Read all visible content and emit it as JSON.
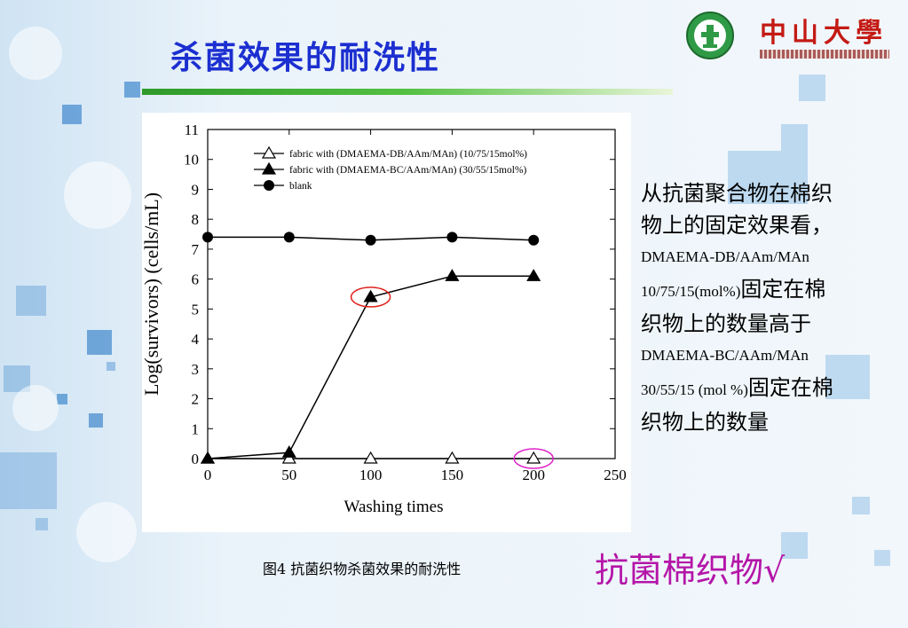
{
  "slide": {
    "title": "杀菌效果的耐洗性",
    "logo_text": "中山大學",
    "side_text": {
      "line1": "从抗菌聚合物在棉织",
      "line2": "物上的固定效果看，",
      "line3": "DMAEMA-DB/AAm/MAn",
      "line4a": "10/75/15(mol%)",
      "line4b": "固定在棉",
      "line5": "织物上的数量高于",
      "line6": "DMAEMA-BC/AAm/MAn",
      "line7a": "30/55/15 (mol %)",
      "line7b": "固定在棉",
      "line8": "织物上的数量"
    },
    "caption": "图4  抗菌织物杀菌效果的耐洗性",
    "conclusion": "抗菌棉织物√",
    "colors": {
      "title": "#1c2fd0",
      "conclusion": "#b415a8",
      "highlight_red": "#e0201c",
      "highlight_magenta": "#e020c8"
    }
  },
  "chart_data": {
    "type": "line",
    "xlabel": "Washing times",
    "ylabel": "Log(survivors) (cells/mL)",
    "xlim": [
      0,
      250
    ],
    "ylim": [
      0,
      11
    ],
    "xticks": [
      0,
      50,
      100,
      150,
      200,
      250
    ],
    "yticks": [
      0,
      1,
      2,
      3,
      4,
      5,
      6,
      7,
      8,
      9,
      10,
      11
    ],
    "legend_position": "top-left",
    "series": [
      {
        "name": "fabric with (DMAEMA-DB/AAm/MAn) (10/75/15mol%)",
        "marker": "open-triangle",
        "x": [
          0,
          50,
          100,
          150,
          200
        ],
        "y": [
          0,
          0,
          0,
          0,
          0
        ]
      },
      {
        "name": "fabric with (DMAEMA-BC/AAm/MAn) (30/55/15mol%)",
        "marker": "filled-triangle",
        "x": [
          0,
          50,
          100,
          150,
          200
        ],
        "y": [
          0,
          0.2,
          5.4,
          6.1,
          6.1
        ]
      },
      {
        "name": "blank",
        "marker": "filled-circle",
        "x": [
          0,
          50,
          100,
          150,
          200
        ],
        "y": [
          7.4,
          7.4,
          7.3,
          7.4,
          7.3
        ]
      }
    ],
    "annotations": [
      {
        "shape": "ellipse",
        "color": "red",
        "series": 1,
        "x": 100,
        "y": 5.4
      },
      {
        "shape": "ellipse",
        "color": "magenta",
        "series": 0,
        "x": 200,
        "y": 0
      }
    ]
  }
}
